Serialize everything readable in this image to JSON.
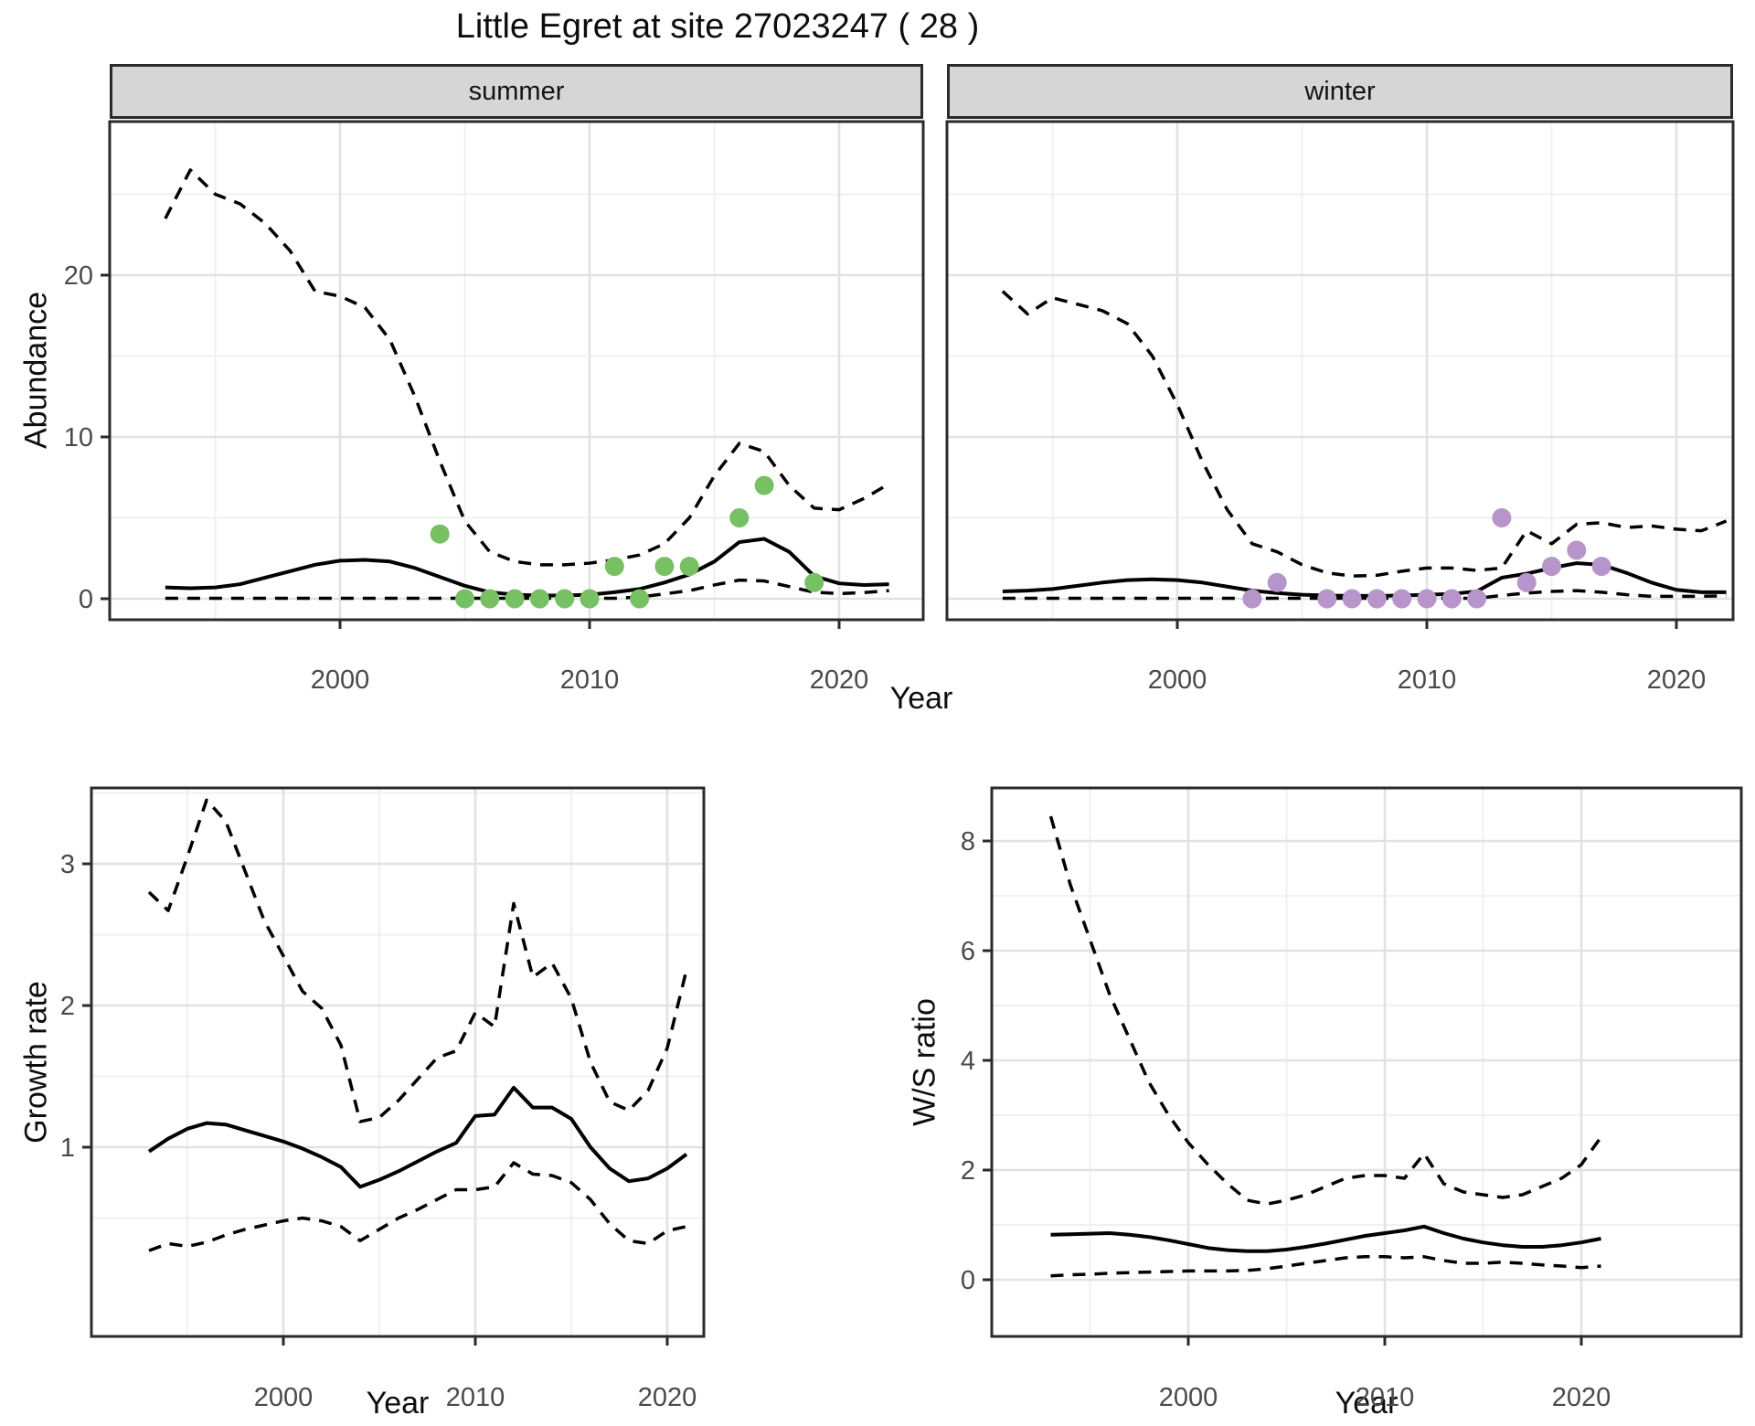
{
  "title": "Little Egret at site 27023247 ( 28 )",
  "colors": {
    "line": "#000000",
    "summer_points": "#77c063",
    "winter_points": "#b794ca",
    "grid_major": "#e2e2e2",
    "grid_minor": "#f0f0f0",
    "panel_border": "#2b2b2b",
    "strip_bg": "#d6d6d6",
    "tick_text": "#4a4a4a"
  },
  "chart_data": [
    {
      "id": "abundance_summer",
      "type": "line",
      "facet_label": "summer",
      "ylabel": "Abundance",
      "xlabel": "Year",
      "xlim": [
        1990.8,
        2023.4
      ],
      "ylim": [
        -1.3,
        29.5
      ],
      "x_ticks": [
        2000,
        2010,
        2020
      ],
      "x_minor": [
        1995,
        2005,
        2015
      ],
      "y_ticks": [
        0,
        10,
        20
      ],
      "y_minor": [
        5,
        15,
        25
      ],
      "grid": true,
      "legend": "none",
      "start_year": 1993,
      "series": [
        {
          "name": "upper_ci",
          "style": "dashed",
          "values": [
            23.5,
            26.5,
            25.0,
            24.4,
            23.2,
            21.5,
            19.0,
            18.7,
            18.0,
            16.0,
            12.5,
            8.5,
            4.8,
            2.9,
            2.3,
            2.1,
            2.1,
            2.2,
            2.4,
            2.7,
            3.4,
            5.0,
            7.6,
            9.6,
            9.1,
            7.0,
            5.6,
            5.5,
            6.2,
            7.1
          ]
        },
        {
          "name": "median",
          "style": "solid",
          "values": [
            0.7,
            0.65,
            0.7,
            0.9,
            1.3,
            1.7,
            2.1,
            2.35,
            2.4,
            2.3,
            1.9,
            1.35,
            0.8,
            0.4,
            0.25,
            0.2,
            0.2,
            0.25,
            0.4,
            0.6,
            1.0,
            1.5,
            2.3,
            3.5,
            3.7,
            2.9,
            1.4,
            0.95,
            0.85,
            0.9
          ]
        },
        {
          "name": "lower_ci",
          "style": "dashed",
          "values": [
            0.03,
            0.03,
            0.03,
            0.03,
            0.03,
            0.03,
            0.03,
            0.03,
            0.03,
            0.03,
            0.03,
            0.03,
            0.03,
            0.03,
            0.03,
            0.03,
            0.03,
            0.03,
            0.03,
            0.1,
            0.3,
            0.5,
            0.85,
            1.15,
            1.1,
            0.75,
            0.4,
            0.32,
            0.38,
            0.5
          ]
        }
      ],
      "observed_points": {
        "name": "observed_counts_summer",
        "color": "#77c063",
        "data": [
          [
            2004,
            4
          ],
          [
            2005,
            0
          ],
          [
            2006,
            0
          ],
          [
            2007,
            0
          ],
          [
            2008,
            0
          ],
          [
            2009,
            0
          ],
          [
            2010,
            0
          ],
          [
            2011,
            2
          ],
          [
            2012,
            0
          ],
          [
            2013,
            2
          ],
          [
            2014,
            2
          ],
          [
            2016,
            5
          ],
          [
            2017,
            7
          ],
          [
            2019,
            1
          ]
        ]
      }
    },
    {
      "id": "abundance_winter",
      "type": "line",
      "facet_label": "winter",
      "ylabel": "Abundance",
      "xlabel": "Year",
      "xlim": [
        1990.8,
        2022.3
      ],
      "ylim": [
        -1.3,
        29.5
      ],
      "x_ticks": [
        2000,
        2010,
        2020
      ],
      "x_minor": [
        1995,
        2005,
        2015
      ],
      "y_ticks": [
        0,
        10,
        20
      ],
      "y_minor": [
        5,
        15,
        25
      ],
      "grid": true,
      "legend": "none",
      "start_year": 1993,
      "series": [
        {
          "name": "upper_ci",
          "style": "dashed",
          "values": [
            19.0,
            17.6,
            18.6,
            18.2,
            17.8,
            17.0,
            15.0,
            12.0,
            8.5,
            5.5,
            3.4,
            2.9,
            2.1,
            1.6,
            1.4,
            1.45,
            1.7,
            1.9,
            1.9,
            1.75,
            1.9,
            4.2,
            3.4,
            4.6,
            4.7,
            4.4,
            4.5,
            4.3,
            4.2,
            4.8
          ]
        },
        {
          "name": "median",
          "style": "solid",
          "values": [
            0.45,
            0.5,
            0.6,
            0.8,
            1.0,
            1.15,
            1.2,
            1.15,
            1.0,
            0.75,
            0.5,
            0.35,
            0.25,
            0.2,
            0.18,
            0.18,
            0.2,
            0.25,
            0.3,
            0.45,
            1.3,
            1.55,
            1.9,
            2.2,
            2.1,
            1.6,
            1.0,
            0.55,
            0.4,
            0.4
          ]
        },
        {
          "name": "lower_ci",
          "style": "dashed",
          "values": [
            0.03,
            0.03,
            0.03,
            0.03,
            0.03,
            0.03,
            0.03,
            0.03,
            0.03,
            0.03,
            0.03,
            0.03,
            0.03,
            0.03,
            0.03,
            0.03,
            0.03,
            0.03,
            0.03,
            0.03,
            0.2,
            0.35,
            0.45,
            0.5,
            0.4,
            0.25,
            0.15,
            0.15,
            0.15,
            0.18
          ]
        }
      ],
      "observed_points": {
        "name": "observed_counts_winter",
        "color": "#b794ca",
        "data": [
          [
            2003,
            0
          ],
          [
            2004,
            1
          ],
          [
            2006,
            0
          ],
          [
            2007,
            0
          ],
          [
            2008,
            0
          ],
          [
            2009,
            0
          ],
          [
            2010,
            0
          ],
          [
            2011,
            0
          ],
          [
            2012,
            0
          ],
          [
            2013,
            5
          ],
          [
            2014,
            1
          ],
          [
            2015,
            2
          ],
          [
            2016,
            3
          ],
          [
            2017,
            2
          ]
        ]
      }
    },
    {
      "id": "growth_rate",
      "type": "line",
      "facet_label": "",
      "ylabel": "Growth rate",
      "xlabel": "Year",
      "xlim": [
        1990,
        2021.9
      ],
      "ylim": [
        -0.33,
        3.54
      ],
      "x_ticks": [
        2000,
        2010,
        2020
      ],
      "x_minor": [
        1995,
        2005,
        2015
      ],
      "y_ticks": [
        1,
        2,
        3
      ],
      "y_minor": [
        0.5,
        1.5,
        2.5,
        3.5
      ],
      "grid": true,
      "legend": "none",
      "start_year": 1993,
      "series": [
        {
          "name": "upper_ci",
          "style": "dashed",
          "values": [
            2.8,
            2.67,
            3.05,
            3.45,
            3.3,
            2.95,
            2.6,
            2.35,
            2.1,
            1.98,
            1.72,
            1.18,
            1.21,
            1.33,
            1.48,
            1.63,
            1.68,
            1.95,
            1.85,
            2.72,
            2.2,
            2.3,
            2.05,
            1.6,
            1.32,
            1.26,
            1.4,
            1.7,
            2.25
          ]
        },
        {
          "name": "median",
          "style": "solid",
          "values": [
            0.97,
            1.06,
            1.13,
            1.17,
            1.16,
            1.12,
            1.08,
            1.04,
            0.99,
            0.93,
            0.86,
            0.72,
            0.77,
            0.83,
            0.9,
            0.97,
            1.03,
            1.22,
            1.23,
            1.42,
            1.28,
            1.28,
            1.2,
            1.0,
            0.85,
            0.76,
            0.78,
            0.85,
            0.95
          ]
        },
        {
          "name": "lower_ci",
          "style": "dashed",
          "values": [
            0.27,
            0.32,
            0.3,
            0.33,
            0.38,
            0.42,
            0.45,
            0.48,
            0.5,
            0.48,
            0.44,
            0.34,
            0.42,
            0.5,
            0.56,
            0.63,
            0.7,
            0.7,
            0.72,
            0.89,
            0.81,
            0.8,
            0.75,
            0.63,
            0.46,
            0.34,
            0.32,
            0.41,
            0.44
          ]
        }
      ],
      "observed_points": {
        "name": "none",
        "color": "",
        "data": []
      }
    },
    {
      "id": "ws_ratio",
      "type": "line",
      "facet_label": "",
      "ylabel": "W/S ratio",
      "xlabel": "Year",
      "xlim": [
        1983,
        2021.1
      ],
      "ylim": [
        -1.0,
        8.97
      ],
      "x_ticks": [
        2000,
        2010,
        2020
      ],
      "x_minor": [
        1995,
        2005,
        2015
      ],
      "y_ticks": [
        0,
        2,
        4,
        6,
        8
      ],
      "y_minor": [
        1,
        3,
        5,
        7
      ],
      "grid": true,
      "legend": "none",
      "start_year": 1993,
      "series": [
        {
          "name": "upper_ci",
          "style": "dashed",
          "values": [
            8.45,
            7.2,
            6.2,
            5.2,
            4.4,
            3.6,
            3.0,
            2.5,
            2.1,
            1.75,
            1.45,
            1.38,
            1.45,
            1.55,
            1.7,
            1.85,
            1.9,
            1.9,
            1.85,
            2.3,
            1.75,
            1.6,
            1.55,
            1.5,
            1.55,
            1.7,
            1.85,
            2.1,
            2.6
          ]
        },
        {
          "name": "median",
          "style": "solid",
          "values": [
            0.82,
            0.83,
            0.84,
            0.85,
            0.82,
            0.78,
            0.72,
            0.65,
            0.58,
            0.54,
            0.52,
            0.52,
            0.55,
            0.6,
            0.66,
            0.73,
            0.8,
            0.85,
            0.9,
            0.97,
            0.85,
            0.75,
            0.68,
            0.63,
            0.6,
            0.6,
            0.63,
            0.68,
            0.75
          ]
        },
        {
          "name": "lower_ci",
          "style": "dashed",
          "values": [
            0.07,
            0.09,
            0.1,
            0.12,
            0.13,
            0.14,
            0.15,
            0.16,
            0.16,
            0.16,
            0.17,
            0.2,
            0.25,
            0.3,
            0.35,
            0.4,
            0.42,
            0.42,
            0.4,
            0.42,
            0.35,
            0.3,
            0.3,
            0.32,
            0.3,
            0.27,
            0.25,
            0.22,
            0.25
          ]
        }
      ],
      "observed_points": {
        "name": "none",
        "color": "",
        "data": []
      }
    }
  ]
}
